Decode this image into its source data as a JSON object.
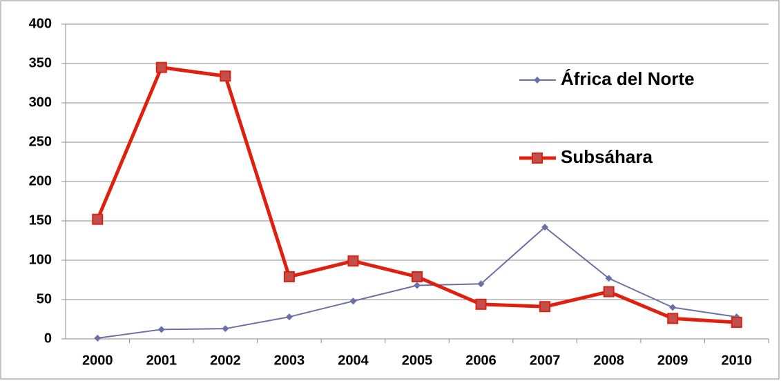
{
  "chart_data": {
    "type": "line",
    "categories": [
      "2000",
      "2001",
      "2002",
      "2003",
      "2004",
      "2005",
      "2006",
      "2007",
      "2008",
      "2009",
      "2010"
    ],
    "series": [
      {
        "name": "África del Norte",
        "color": "#6b6fa8",
        "marker": "diamond",
        "values": [
          1,
          12,
          13,
          28,
          48,
          68,
          70,
          142,
          77,
          40,
          28
        ]
      },
      {
        "name": "Subsáhara",
        "color": "#e0200f",
        "marker": "square",
        "values": [
          152,
          345,
          334,
          79,
          99,
          79,
          44,
          41,
          60,
          26,
          21
        ]
      }
    ],
    "ylim": [
      0,
      400
    ],
    "yticks": [
      0,
      50,
      100,
      150,
      200,
      250,
      300,
      350,
      400
    ],
    "grid": true,
    "legend": "upper right"
  }
}
